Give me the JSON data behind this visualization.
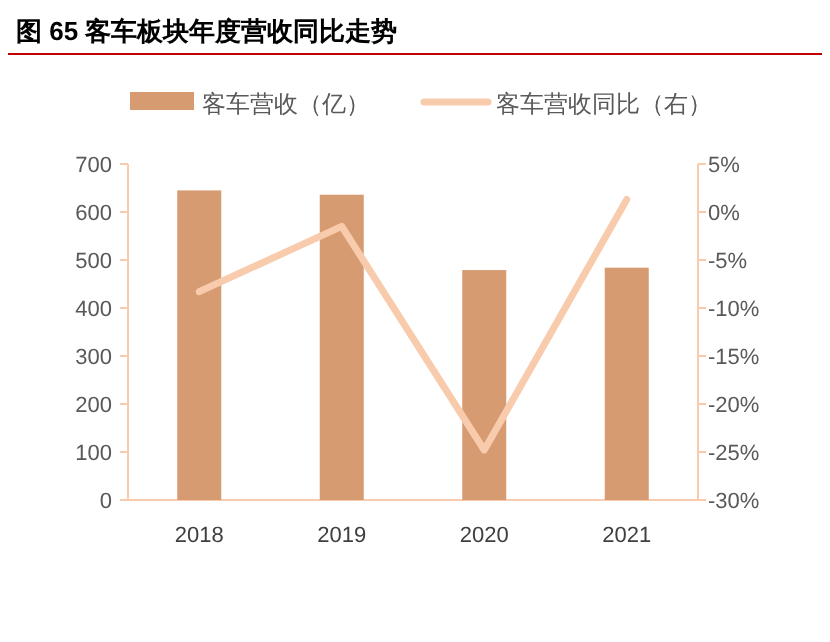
{
  "chart_data": {
    "type": "bar",
    "title": "图 65  客车板块年度营收同比走势",
    "categories": [
      "2018",
      "2019",
      "2020",
      "2021"
    ],
    "series": [
      {
        "name": "客车营收（亿）",
        "color": "#d79b72",
        "values": [
          645,
          636,
          479,
          484
        ]
      },
      {
        "name": "客车营收同比（右）",
        "type": "line",
        "axis": "y2",
        "color": "#f8cbad",
        "values": [
          -8.3,
          -1.5,
          -24.8,
          1.3
        ]
      }
    ],
    "ylim": [
      0,
      700
    ],
    "yticks": [
      0,
      100,
      200,
      300,
      400,
      500,
      600,
      700
    ],
    "y2lim": [
      -30,
      5
    ],
    "y2ticks": [
      {
        "value": 5,
        "label": "5%"
      },
      {
        "value": 0,
        "label": "0%"
      },
      {
        "value": -5,
        "label": "-5%"
      },
      {
        "value": -10,
        "label": "-10%"
      },
      {
        "value": -15,
        "label": "-15%"
      },
      {
        "value": -20,
        "label": "-20%"
      },
      {
        "value": -25,
        "label": "-25%"
      },
      {
        "value": -30,
        "label": "-30%"
      }
    ],
    "legend": "top",
    "grid": false,
    "marker": "none"
  }
}
